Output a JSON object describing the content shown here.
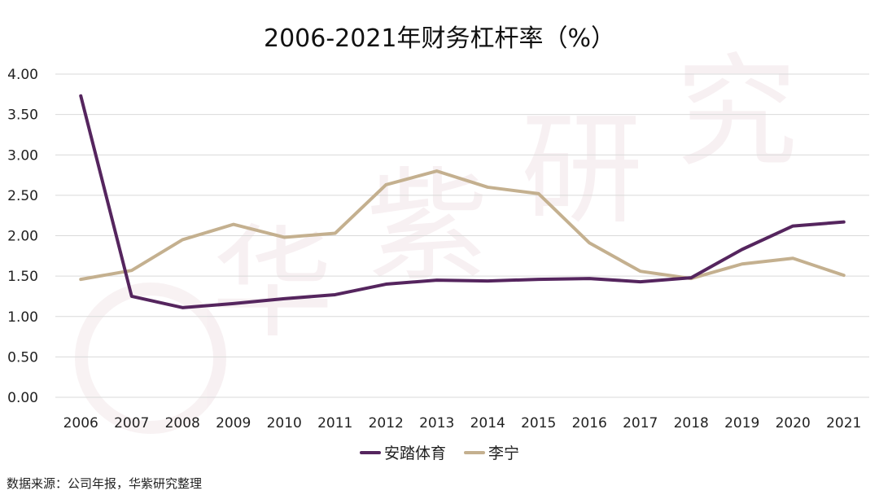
{
  "chart_data": {
    "type": "line",
    "title": "2006-2021年财务杠杆率（%）",
    "xlabel": "",
    "ylabel": "",
    "x": [
      "2006",
      "2007",
      "2008",
      "2009",
      "2010",
      "2011",
      "2012",
      "2013",
      "2014",
      "2015",
      "2016",
      "2017",
      "2018",
      "2019",
      "2020",
      "2021"
    ],
    "ylim": [
      0,
      4
    ],
    "yticks": [
      "0.00",
      "0.50",
      "1.00",
      "1.50",
      "2.00",
      "2.50",
      "3.00",
      "3.50",
      "4.00"
    ],
    "grid": true,
    "legend_position": "bottom",
    "series": [
      {
        "name": "安踏体育",
        "color": "#55255e",
        "values": [
          3.73,
          1.25,
          1.11,
          1.16,
          1.22,
          1.27,
          1.4,
          1.45,
          1.44,
          1.46,
          1.47,
          1.43,
          1.48,
          1.83,
          2.12,
          2.17
        ]
      },
      {
        "name": "李宁",
        "color": "#c4b08f",
        "values": [
          1.46,
          1.57,
          1.95,
          2.14,
          1.98,
          2.03,
          2.63,
          2.8,
          2.6,
          2.52,
          1.91,
          1.56,
          1.47,
          1.65,
          1.72,
          1.51
        ]
      }
    ]
  },
  "source": "数据来源：公司年报，华紫研究整理",
  "watermark": "华紫研究"
}
